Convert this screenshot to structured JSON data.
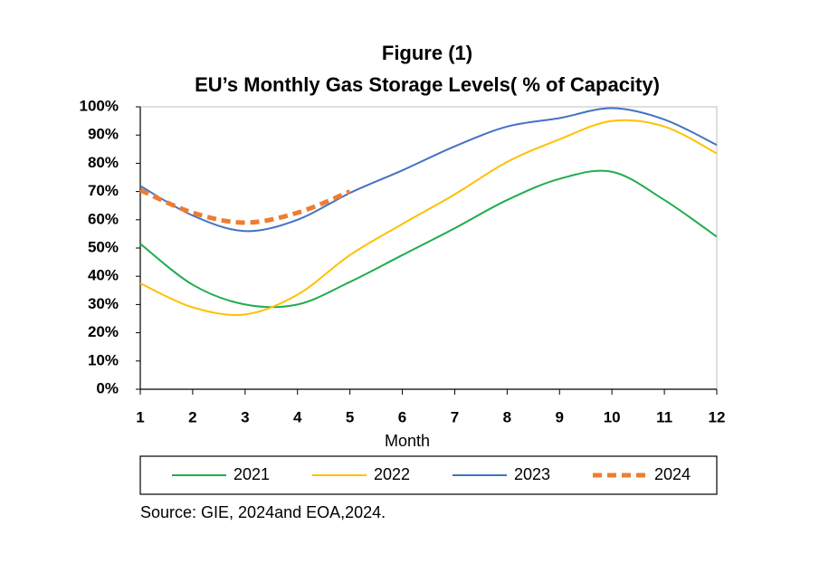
{
  "chart_data": {
    "type": "line",
    "title": [
      "Figure (1)",
      "EU’s Monthly Gas Storage Levels( % of Capacity)"
    ],
    "x_label": "Month",
    "annotation": "Source: GIE, 2024and EOA,2024.",
    "x": [
      1,
      2,
      3,
      4,
      5,
      6,
      7,
      8,
      9,
      10,
      11,
      12
    ],
    "xlim": [
      1,
      12
    ],
    "xticks": [
      1,
      2,
      3,
      4,
      5,
      6,
      7,
      8,
      9,
      10,
      11,
      12
    ],
    "ylim": [
      0,
      100
    ],
    "yticks": [
      {
        "value": 0,
        "label": "0%"
      },
      {
        "value": 10,
        "label": "10%"
      },
      {
        "value": 20,
        "label": "20%"
      },
      {
        "value": 30,
        "label": "30%"
      },
      {
        "value": 40,
        "label": "40%"
      },
      {
        "value": 50,
        "label": "50%"
      },
      {
        "value": 60,
        "label": "60%"
      },
      {
        "value": 70,
        "label": "70%"
      },
      {
        "value": 80,
        "label": "80%"
      },
      {
        "value": 90,
        "label": "90%"
      },
      {
        "value": 100,
        "label": "100%"
      }
    ],
    "grid": false,
    "smooth": true,
    "legend": "bottom",
    "series": [
      {
        "name": "2021",
        "color": "#1fad4e",
        "dashed": false,
        "values": [
          51.5,
          37,
          30,
          30,
          38,
          47.5,
          57,
          67,
          74.5,
          77,
          67,
          54
        ]
      },
      {
        "name": "2022",
        "color": "#ffc000",
        "dashed": false,
        "values": [
          37.5,
          29,
          26.5,
          33.5,
          47.5,
          58.5,
          69,
          80.5,
          88.5,
          95,
          93,
          83.5
        ]
      },
      {
        "name": "2023",
        "color": "#4472c4",
        "dashed": false,
        "values": [
          72,
          61.5,
          56,
          60,
          69.5,
          77.5,
          86,
          93,
          96,
          99.5,
          95.5,
          86.5
        ]
      },
      {
        "name": "2024",
        "color": "#ed7d31",
        "dashed": true,
        "values": [
          70.5,
          62.5,
          59,
          62.5,
          70,
          null,
          null,
          null,
          null,
          null,
          null,
          null
        ]
      }
    ]
  }
}
